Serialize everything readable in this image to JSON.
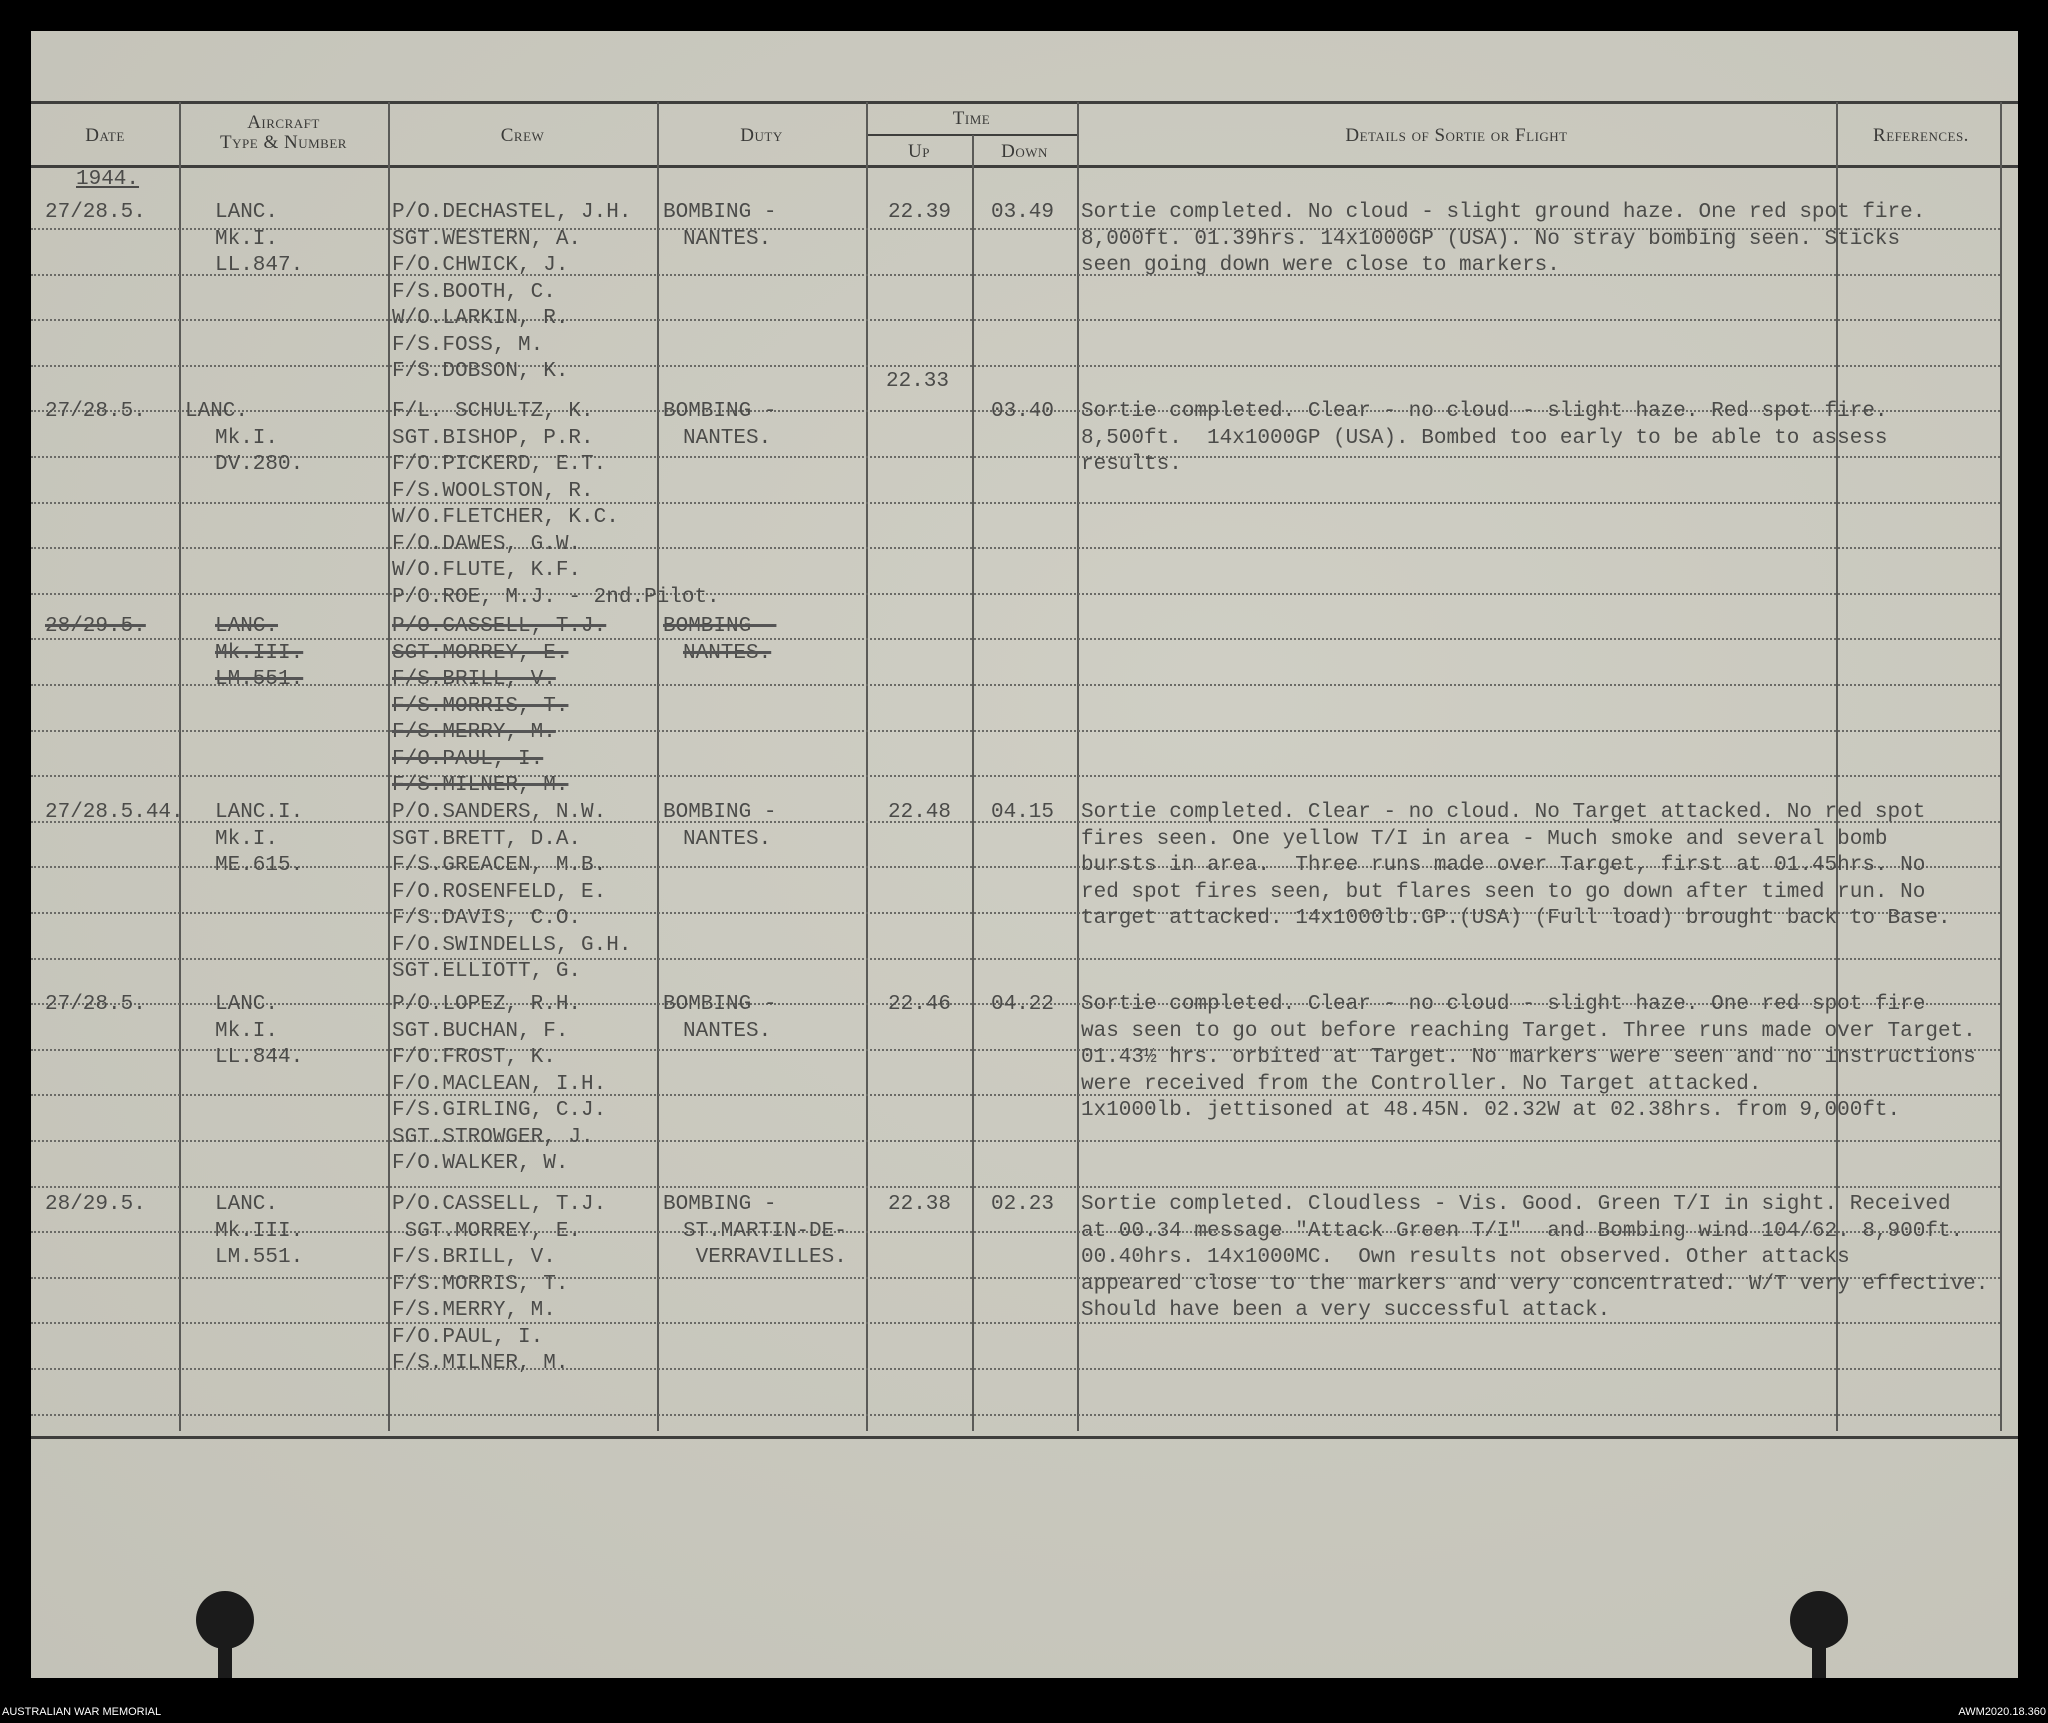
{
  "headers": {
    "date": "Date",
    "aircraft": [
      "Aircraft",
      "Type & Number"
    ],
    "crew": "Crew",
    "duty": "Duty",
    "time": "Time",
    "up": "Up",
    "down": "Down",
    "details": "Details of Sortie or Flight",
    "references": "References."
  },
  "year": "1944.",
  "entries": [
    {
      "date": "27/28.5.",
      "aircraft": [
        "LANC.",
        "Mk.I.",
        "LL.847."
      ],
      "crew": [
        "P/O.DECHASTEL, J.H.",
        "SGT.WESTERN, A.",
        "F/O.CHWICK, J.",
        "F/S.BOOTH, C.",
        "W/O.LARKIN, R.",
        "F/S.FOSS, M.",
        "F/S.DOBSON, K."
      ],
      "duty": [
        "BOMBING -",
        "NANTES."
      ],
      "up": "22.39",
      "down": "03.49",
      "details": [
        "Sortie completed. No cloud - slight ground haze. One red spot fire.",
        "8,000ft. 01.39hrs. 14x1000GP (USA). No stray bombing seen. Sticks",
        "seen going down were close to markers."
      ],
      "struck": false
    },
    {
      "date": "27/28.5.",
      "aircraft": [
        "LANC.",
        "Mk.I.",
        "DV.280."
      ],
      "crew": [
        "F/L. SCHULTZ, K.",
        "SGT.BISHOP, P.R.",
        "F/O.PICKERD, E.T.",
        "F/S.WOOLSTON, R.",
        "W/O.FLETCHER, K.C.",
        "F/O.DAWES, G.W.",
        "W/O.FLUTE, K.F.",
        "P/O.ROE, M.J. - 2nd.Pilot."
      ],
      "duty": [
        "BOMBING -",
        "NANTES."
      ],
      "up_corrected": "22.33",
      "up": "",
      "down": "03.40",
      "details": [
        "Sortie completed. Clear - no cloud - slight haze. Red spot fire.",
        "8,500ft.  14x1000GP (USA). Bombed too early to be able to assess",
        "results."
      ],
      "struck": false
    },
    {
      "date": "28/29.5.",
      "aircraft": [
        "LANC.",
        "Mk.III.",
        "LM.551."
      ],
      "crew": [
        "P/O.CASSELL, T.J.",
        "SGT.MORREY, E.",
        "F/S.BRILL, V.",
        "F/S.MORRIS, T.",
        "F/S.MERRY, M.",
        "F/O.PAUL, I.",
        "F/S.MILNER, M."
      ],
      "duty": [
        "BOMBING -",
        "NANTES."
      ],
      "up": "",
      "down": "",
      "details": [],
      "struck": true
    },
    {
      "date": "27/28.5.44.",
      "aircraft": [
        "LANC.I.",
        "Mk.I.",
        "ME.615."
      ],
      "crew": [
        "P/O.SANDERS, N.W.",
        "SGT.BRETT, D.A.",
        "F/S.GREACEN, M.B.",
        "F/O.ROSENFELD, E.",
        "F/S.DAVIS, C.O.",
        "F/O.SWINDELLS, G.H.",
        "SGT.ELLIOTT, G."
      ],
      "duty": [
        "BOMBING -",
        "NANTES."
      ],
      "up": "22.48",
      "down": "04.15",
      "details": [
        "Sortie completed. Clear - no cloud. No Target attacked. No red spot",
        "fires seen. One yellow T/I in area - Much smoke and several bomb",
        "bursts in area.  Three runs made over Target, first at 01.45hrs. No",
        "red spot fires seen, but flares seen to go down after timed run. No",
        "target attacked. 14x1000lb.GP.(USA) (Full load) brought back to Base."
      ],
      "struck": false
    },
    {
      "date": "27/28.5.",
      "aircraft": [
        "LANC.",
        "Mk.I.",
        "LL.844."
      ],
      "crew": [
        "P/O.LOPEZ, R.H.",
        "SGT.BUCHAN, F.",
        "F/O.FROST, K.",
        "F/O.MACLEAN, I.H.",
        "F/S.GIRLING, C.J.",
        "SGT.STROWGER, J.",
        "F/O.WALKER, W."
      ],
      "duty": [
        "BOMBING -",
        "NANTES."
      ],
      "up": "22.46",
      "down": "04.22",
      "details": [
        "Sortie completed. Clear - no cloud - slight haze. One red spot fire",
        "was seen to go out before reaching Target. Three runs made over Target.",
        "01.43½ hrs. orbited at Target. No markers were seen and no instructions",
        "were received from the Controller. No Target attacked.",
        "1x1000lb. jettisoned at 48.45N. 02.32W at 02.38hrs. from 9,000ft."
      ],
      "struck": false
    },
    {
      "date": "28/29.5.",
      "aircraft": [
        "LANC.",
        "Mk.III.",
        "LM.551."
      ],
      "crew": [
        "P/O.CASSELL, T.J.",
        " SGT.MORREY, E.",
        "F/S.BRILL, V.",
        "F/S.MORRIS, T.",
        "F/S.MERRY, M.",
        "F/O.PAUL, I.",
        "F/S.MILNER, M."
      ],
      "duty": [
        "BOMBING -",
        "ST.MARTIN-DE-",
        " VERRAVILLES."
      ],
      "up": "22.38",
      "down": "02.23",
      "details": [
        "Sortie completed. Cloudless - Vis. Good. Green T/I in sight. Received",
        "at 00.34 message \"Attack Green T/I\"  and Bombing wind 104/62. 8,900ft.",
        "00.40hrs. 14x1000MC.  Own results not observed. Other attacks",
        "appeared close to the markers and very concentrated. W/T very effective.",
        "Should have been a very successful attack."
      ],
      "struck": false
    }
  ],
  "footer": {
    "left": "AUSTRALIAN WAR MEMORIAL",
    "right": "AWM2020.18.360"
  },
  "colors": {
    "paper": "#cbcabf",
    "ink": "#4b4b49",
    "background": "#000000"
  }
}
